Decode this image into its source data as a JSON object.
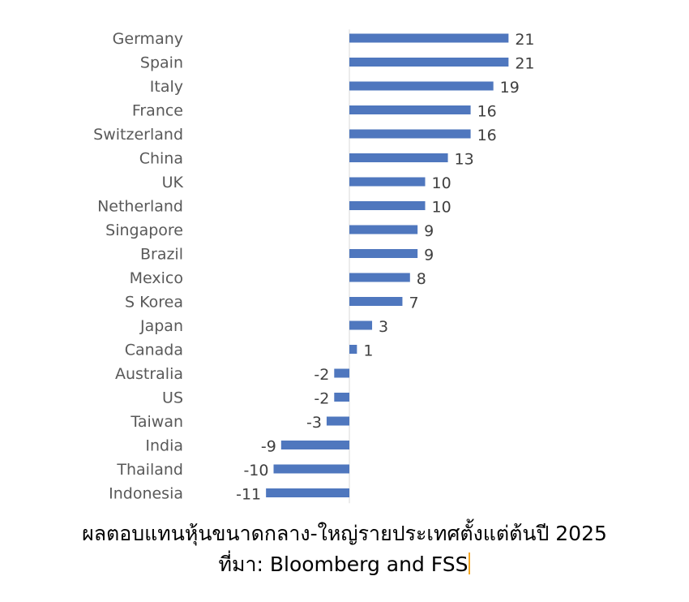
{
  "chart_data": {
    "type": "bar",
    "orientation": "horizontal",
    "categories": [
      "Germany",
      "Spain",
      "Italy",
      "France",
      "Switzerland",
      "China",
      "UK",
      "Netherland",
      "Singapore",
      "Brazil",
      "Mexico",
      "S Korea",
      "Japan",
      "Canada",
      "Australia",
      "US",
      "Taiwan",
      "India",
      "Thailand",
      "Indonesia"
    ],
    "values": [
      21,
      21,
      19,
      16,
      16,
      13,
      10,
      10,
      9,
      9,
      8,
      7,
      3,
      1,
      -2,
      -2,
      -3,
      -9,
      -10,
      -11
    ],
    "title": "",
    "xlabel": "",
    "ylabel": "",
    "data_labels": true,
    "grid": false,
    "bar_color": "#4f77be"
  },
  "caption": {
    "title": "ผลตอบแทนหุ้นขนาดกลาง-ใหญ่รายประเทศตั้งแต่ต้นปี 2025",
    "source": "ที่มา: Bloomberg and FSS"
  }
}
